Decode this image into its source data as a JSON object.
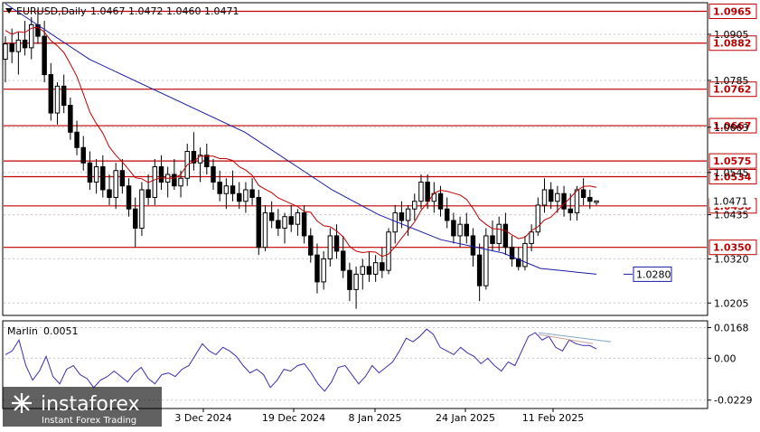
{
  "header": {
    "symbol": "EURUSD,Daily",
    "ohlc": "1.0467 1.0472 1.0460 1.0471"
  },
  "chart_data": {
    "type": "candlestick",
    "symbol": "EURUSD",
    "timeframe": "Daily",
    "last_ohlc": {
      "open": 1.0467,
      "high": 1.0472,
      "low": 1.046,
      "close": 1.0471
    },
    "price_axis": {
      "ticks": [
        "1.0905",
        "1.0785",
        "1.0663",
        "1.0545",
        "1.0435",
        "1.0320",
        "1.0205"
      ],
      "range": [
        1.0175,
        1.0985
      ]
    },
    "current_price_label": "1.0471",
    "levels": [
      {
        "price": 1.0965,
        "label": "1.0965"
      },
      {
        "price": 1.0882,
        "label": "1.0882"
      },
      {
        "price": 1.0762,
        "label": "1.0762"
      },
      {
        "price": 1.0667,
        "label": "1.0667"
      },
      {
        "price": 1.0575,
        "label": "1.0575"
      },
      {
        "price": 1.0534,
        "label": "1.0534"
      },
      {
        "price": 1.0458,
        "label": "1.0458"
      },
      {
        "price": 1.035,
        "label": "1.0350"
      }
    ],
    "ma_label": "1.0280",
    "time_axis": [
      "3 Dec 2024",
      "19 Dec 2024",
      "8 Jan 2025",
      "24 Jan 2025",
      "11 Feb 2025"
    ],
    "candles": [
      [
        1.084,
        1.09,
        1.078,
        1.088
      ],
      [
        1.088,
        1.092,
        1.083,
        1.086
      ],
      [
        1.086,
        1.091,
        1.08,
        1.089
      ],
      [
        1.089,
        1.094,
        1.085,
        1.087
      ],
      [
        1.087,
        1.095,
        1.084,
        1.093
      ],
      [
        1.093,
        1.097,
        1.088,
        1.09
      ],
      [
        1.09,
        1.094,
        1.078,
        1.08
      ],
      [
        1.08,
        1.083,
        1.068,
        1.07
      ],
      [
        1.07,
        1.078,
        1.067,
        1.077
      ],
      [
        1.077,
        1.08,
        1.07,
        1.072
      ],
      [
        1.072,
        1.074,
        1.063,
        1.065
      ],
      [
        1.065,
        1.068,
        1.059,
        1.061
      ],
      [
        1.061,
        1.064,
        1.055,
        1.057
      ],
      [
        1.057,
        1.06,
        1.05,
        1.052
      ],
      [
        1.052,
        1.058,
        1.049,
        1.056
      ],
      [
        1.056,
        1.059,
        1.048,
        1.05
      ],
      [
        1.05,
        1.054,
        1.046,
        1.048
      ],
      [
        1.048,
        1.057,
        1.045,
        1.055
      ],
      [
        1.055,
        1.058,
        1.049,
        1.051
      ],
      [
        1.051,
        1.053,
        1.043,
        1.045
      ],
      [
        1.045,
        1.048,
        1.035,
        1.04
      ],
      [
        1.04,
        1.052,
        1.038,
        1.05
      ],
      [
        1.05,
        1.054,
        1.046,
        1.048
      ],
      [
        1.048,
        1.058,
        1.046,
        1.056
      ],
      [
        1.056,
        1.059,
        1.05,
        1.052
      ],
      [
        1.052,
        1.056,
        1.048,
        1.054
      ],
      [
        1.054,
        1.058,
        1.05,
        1.051
      ],
      [
        1.051,
        1.055,
        1.048,
        1.053
      ],
      [
        1.053,
        1.062,
        1.051,
        1.06
      ],
      [
        1.06,
        1.065,
        1.055,
        1.057
      ],
      [
        1.057,
        1.061,
        1.052,
        1.059
      ],
      [
        1.059,
        1.062,
        1.054,
        1.056
      ],
      [
        1.056,
        1.058,
        1.05,
        1.052
      ],
      [
        1.052,
        1.055,
        1.047,
        1.049
      ],
      [
        1.049,
        1.053,
        1.045,
        1.051
      ],
      [
        1.051,
        1.055,
        1.047,
        1.049
      ],
      [
        1.049,
        1.052,
        1.045,
        1.047
      ],
      [
        1.047,
        1.052,
        1.044,
        1.05
      ],
      [
        1.05,
        1.053,
        1.046,
        1.048
      ],
      [
        1.048,
        1.05,
        1.033,
        1.035
      ],
      [
        1.035,
        1.046,
        1.034,
        1.044
      ],
      [
        1.044,
        1.047,
        1.04,
        1.042
      ],
      [
        1.042,
        1.045,
        1.038,
        1.04
      ],
      [
        1.04,
        1.044,
        1.036,
        1.043
      ],
      [
        1.043,
        1.046,
        1.039,
        1.041
      ],
      [
        1.041,
        1.045,
        1.038,
        1.044
      ],
      [
        1.044,
        1.046,
        1.036,
        1.038
      ],
      [
        1.038,
        1.04,
        1.031,
        1.033
      ],
      [
        1.033,
        1.036,
        1.023,
        1.026
      ],
      [
        1.026,
        1.034,
        1.024,
        1.032
      ],
      [
        1.032,
        1.04,
        1.03,
        1.038
      ],
      [
        1.038,
        1.041,
        1.032,
        1.034
      ],
      [
        1.034,
        1.038,
        1.027,
        1.029
      ],
      [
        1.029,
        1.031,
        1.021,
        1.024
      ],
      [
        1.024,
        1.03,
        1.019,
        1.028
      ],
      [
        1.028,
        1.032,
        1.024,
        1.03
      ],
      [
        1.03,
        1.034,
        1.026,
        1.028
      ],
      [
        1.028,
        1.033,
        1.026,
        1.031
      ],
      [
        1.031,
        1.035,
        1.027,
        1.029
      ],
      [
        1.029,
        1.04,
        1.028,
        1.039
      ],
      [
        1.039,
        1.046,
        1.036,
        1.044
      ],
      [
        1.044,
        1.047,
        1.04,
        1.042
      ],
      [
        1.042,
        1.046,
        1.038,
        1.045
      ],
      [
        1.045,
        1.049,
        1.042,
        1.047
      ],
      [
        1.047,
        1.054,
        1.045,
        1.052
      ],
      [
        1.052,
        1.054,
        1.045,
        1.047
      ],
      [
        1.047,
        1.052,
        1.044,
        1.049
      ],
      [
        1.049,
        1.051,
        1.043,
        1.045
      ],
      [
        1.045,
        1.048,
        1.04,
        1.042
      ],
      [
        1.042,
        1.044,
        1.036,
        1.038
      ],
      [
        1.038,
        1.043,
        1.035,
        1.041
      ],
      [
        1.041,
        1.044,
        1.036,
        1.038
      ],
      [
        1.038,
        1.04,
        1.03,
        1.033
      ],
      [
        1.033,
        1.036,
        1.021,
        1.025
      ],
      [
        1.025,
        1.04,
        1.024,
        1.038
      ],
      [
        1.038,
        1.042,
        1.034,
        1.036
      ],
      [
        1.036,
        1.043,
        1.034,
        1.041
      ],
      [
        1.041,
        1.044,
        1.033,
        1.035
      ],
      [
        1.035,
        1.038,
        1.03,
        1.032
      ],
      [
        1.032,
        1.035,
        1.029,
        1.03
      ],
      [
        1.03,
        1.038,
        1.029,
        1.036
      ],
      [
        1.036,
        1.041,
        1.034,
        1.039
      ],
      [
        1.039,
        1.048,
        1.038,
        1.046
      ],
      [
        1.046,
        1.053,
        1.044,
        1.05
      ],
      [
        1.05,
        1.052,
        1.045,
        1.047
      ],
      [
        1.047,
        1.051,
        1.044,
        1.049
      ],
      [
        1.049,
        1.051,
        1.043,
        1.045
      ],
      [
        1.045,
        1.049,
        1.042,
        1.044
      ],
      [
        1.044,
        1.051,
        1.042,
        1.05
      ],
      [
        1.05,
        1.053,
        1.046,
        1.048
      ],
      [
        1.048,
        1.05,
        1.045,
        1.047
      ],
      [
        1.0467,
        1.0472,
        1.046,
        1.0471
      ]
    ],
    "blue_ma": [
      [
        0,
        1.0985
      ],
      [
        27,
        1.084
      ],
      [
        77,
        1.065
      ],
      [
        105,
        1.05
      ],
      [
        120,
        1.0435
      ],
      [
        140,
        1.037
      ],
      [
        160,
        1.0335
      ],
      [
        172,
        1.0295
      ],
      [
        190,
        1.028
      ]
    ],
    "indicator": {
      "name": "Marlin",
      "value": "0.0051",
      "ticks": [
        "0.0168",
        "0.00",
        "-0.0229"
      ],
      "range": [
        -0.027,
        0.02
      ],
      "values": [
        0.002,
        0.004,
        0.01,
        -0.004,
        -0.012,
        -0.007,
        0.001,
        -0.01,
        -0.014,
        -0.006,
        -0.004,
        -0.009,
        -0.011,
        -0.016,
        -0.012,
        -0.01,
        -0.007,
        -0.01,
        -0.013,
        -0.008,
        -0.005,
        -0.011,
        -0.014,
        -0.009,
        -0.008,
        -0.01,
        -0.006,
        -0.004,
        0.002,
        0.008,
        0.004,
        0.002,
        0.006,
        0.004,
        0.001,
        -0.004,
        -0.008,
        -0.006,
        -0.009,
        -0.016,
        -0.012,
        -0.006,
        -0.007,
        -0.004,
        -0.003,
        -0.008,
        -0.014,
        -0.018,
        -0.013,
        -0.005,
        -0.004,
        -0.009,
        -0.014,
        -0.01,
        -0.004,
        -0.008,
        -0.005,
        -0.002,
        0.004,
        0.011,
        0.009,
        0.012,
        0.016,
        0.013,
        0.006,
        0.004,
        0.002,
        0.006,
        0.003,
        0.001,
        -0.003,
        0.0,
        -0.004,
        -0.007,
        -0.002,
        -0.004,
        0.004,
        0.012,
        0.014,
        0.01,
        0.012,
        0.006,
        0.004,
        0.01,
        0.008,
        0.007,
        0.007,
        0.0051
      ],
      "divergence_line": [
        [
          0.014,
          0.009
        ],
        [
          0.013,
          0.008
        ]
      ]
    }
  }
}
